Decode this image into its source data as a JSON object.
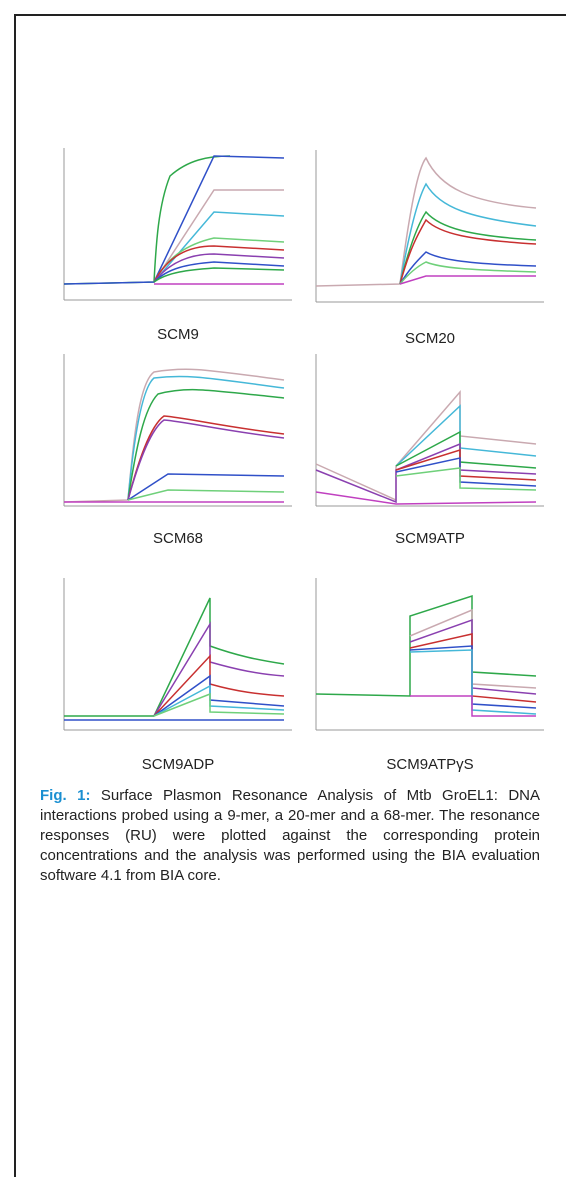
{
  "panels": [
    {
      "label": "SCM9"
    },
    {
      "label": "SCM20"
    },
    {
      "label": "SCM68"
    },
    {
      "label": "SCM9ATP"
    },
    {
      "label": "SCM9ADP"
    },
    {
      "label": "SCM9ATPγS"
    }
  ],
  "caption": {
    "fig_label": "Fig. 1:",
    "text": " Surface Plasmon Resonance Analysis of Mtb GroEL1: DNA interactions probed using a 9-mer, a 20-mer and a 68-mer. The resonance responses (RU) were plotted against the corresponding protein concentrations and the analysis was performed using the BIA evaluation software 4.1 from BIA core."
  },
  "colors": {
    "green": "#2ea84a",
    "blue": "#3050c8",
    "grey": "#c9a9b0",
    "cyan": "#45b8d8",
    "red": "#c83030",
    "purple": "#8a40b0",
    "lightgreen": "#6fd07a",
    "magenta": "#c040c0"
  }
}
